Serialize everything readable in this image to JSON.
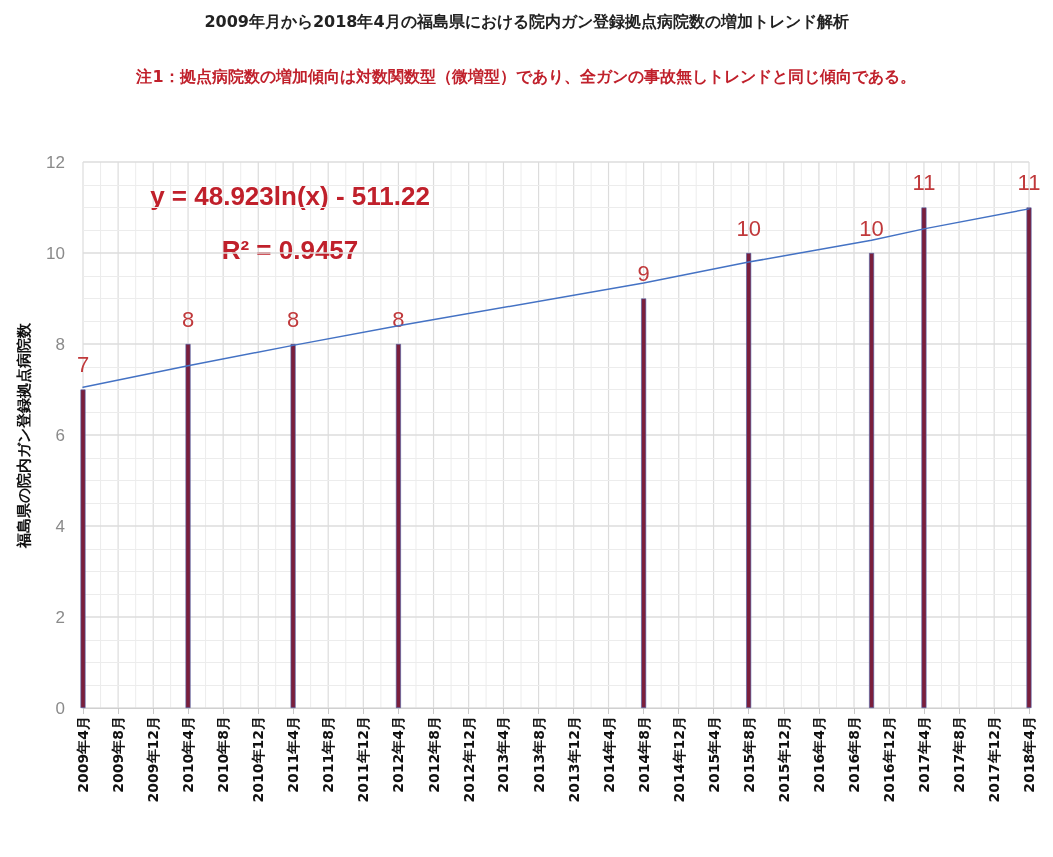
{
  "chart_data": {
    "type": "bar",
    "title": "2009年月から2018年4月の福島県における院内ガン登録拠点病院数の増加トレンド解析",
    "subtitle": "注1：拠点病院数の増加傾向は対数関数型（微増型）であり、全ガンの事故無しトレンドと同じ傾向である。",
    "ylabel": "福島県の院内ガン登録拠点病院数",
    "annotations": [
      "y = 48.923ln(x) - 511.22",
      "R² = 0.9457"
    ],
    "series": [
      {
        "color": "#7b1f3c",
        "data_labels": true,
        "x": [
          "2009-04",
          "2010-04",
          "2011-04",
          "2012-04",
          "2014-08",
          "2015-08",
          "2016-10",
          "2017-04",
          "2018-04"
        ],
        "values": [
          7,
          8,
          8,
          8,
          9,
          10,
          10,
          11,
          11
        ]
      },
      {
        "type": "line",
        "color": "#4472c4",
        "x": [
          "2009-04",
          "2010-04",
          "2011-04",
          "2012-04",
          "2014-08",
          "2015-08",
          "2016-10",
          "2017-04",
          "2018-04"
        ],
        "values": [
          7.05,
          7.52,
          7.97,
          8.4,
          9.34,
          9.8,
          10.28,
          10.53,
          10.97
        ]
      }
    ],
    "xlim": [
      "2009-04",
      "2018-04"
    ],
    "xticks": [
      {
        "value": "2009-04",
        "label": "2009年4月"
      },
      {
        "value": "2009-08",
        "label": "2009年8月"
      },
      {
        "value": "2009-12",
        "label": "2009年12月"
      },
      {
        "value": "2010-04",
        "label": "2010年4月"
      },
      {
        "value": "2010-08",
        "label": "2010年8月"
      },
      {
        "value": "2010-12",
        "label": "2010年12月"
      },
      {
        "value": "2011-04",
        "label": "2011年4月"
      },
      {
        "value": "2011-08",
        "label": "2011年8月"
      },
      {
        "value": "2011-12",
        "label": "2011年12月"
      },
      {
        "value": "2012-04",
        "label": "2012年4月"
      },
      {
        "value": "2012-08",
        "label": "2012年8月"
      },
      {
        "value": "2012-12",
        "label": "2012年12月"
      },
      {
        "value": "2013-04",
        "label": "2013年4月"
      },
      {
        "value": "2013-08",
        "label": "2013年8月"
      },
      {
        "value": "2013-12",
        "label": "2013年12月"
      },
      {
        "value": "2014-04",
        "label": "2014年4月"
      },
      {
        "value": "2014-08",
        "label": "2014年8月"
      },
      {
        "value": "2014-12",
        "label": "2014年12月"
      },
      {
        "value": "2015-04",
        "label": "2015年4月"
      },
      {
        "value": "2015-08",
        "label": "2015年8月"
      },
      {
        "value": "2015-12",
        "label": "2015年12月"
      },
      {
        "value": "2016-04",
        "label": "2016年4月"
      },
      {
        "value": "2016-08",
        "label": "2016年8月"
      },
      {
        "value": "2016-12",
        "label": "2016年12月"
      },
      {
        "value": "2017-04",
        "label": "2017年4月"
      },
      {
        "value": "2017-08",
        "label": "2017年8月"
      },
      {
        "value": "2017-12",
        "label": "2017年12月"
      },
      {
        "value": "2018-04",
        "label": "2018年4月"
      }
    ],
    "ylim": [
      0,
      12
    ],
    "yticks": [
      0,
      2,
      4,
      6,
      8,
      10,
      12
    ],
    "grid": true,
    "marker": "none"
  }
}
